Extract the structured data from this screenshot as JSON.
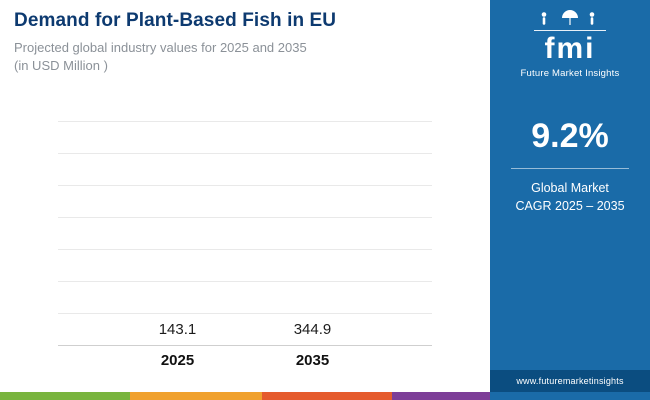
{
  "header": {
    "title": "Demand for Plant-Based Fish in EU",
    "subtitle_line1": "Projected global industry values for 2025 and 2035",
    "subtitle_line2": "(in USD Million )"
  },
  "chart_data": {
    "type": "bar",
    "title": "Demand for Plant-Based Fish in EU",
    "subtitle": "Projected global industry values for 2025 and 2035 (in USD Million)",
    "categories": [
      "2025",
      "2035"
    ],
    "values": [
      143.1,
      344.9
    ],
    "value_labels": [
      "143.1",
      "344.9"
    ],
    "xlabel": "",
    "ylabel": "USD Million",
    "ylim": [
      0,
      360
    ],
    "grid": true,
    "legend_position": "none",
    "bar_colors": [
      "#3b9ad9",
      "#0e3a6b"
    ]
  },
  "sidebar": {
    "logo": {
      "text": "fmi",
      "tagline": "Future Market Insights",
      "icons": "people-umbrella-pictogram-icons"
    },
    "stat": {
      "value": "9.2%",
      "label_line1": "Global Market",
      "label_line2": "CAGR 2025 – 2035"
    },
    "website": "www.futuremarketinsights",
    "colors": {
      "panel": "#1a6ba8",
      "website_bar": "#0b4d80"
    }
  },
  "footer": {
    "stripe_colors": [
      "#79b43e",
      "#f0a12e",
      "#e55b2d",
      "#7d3e98",
      "#1a6ba8"
    ]
  }
}
